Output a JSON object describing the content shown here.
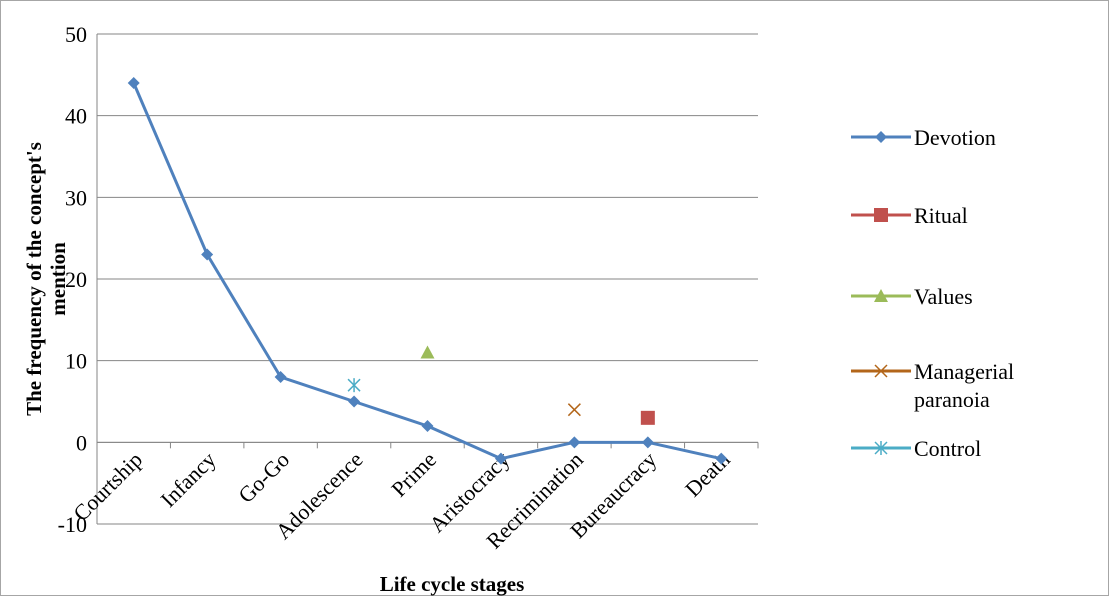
{
  "chart_data": {
    "type": "line",
    "categories": [
      "Courtship",
      "Infancy",
      "Go-Go",
      "Adolescence",
      "Prime",
      "Aristocracy",
      "Recrimination",
      "Bureaucracy",
      "Death"
    ],
    "series": [
      {
        "name": "Devotion",
        "color": "#4f81bd",
        "marker": "diamond",
        "values": [
          44,
          23,
          8,
          5,
          2,
          -2,
          0,
          0,
          -2
        ]
      },
      {
        "name": "Ritual",
        "color": "#c0504d",
        "marker": "square",
        "values": [
          null,
          null,
          null,
          null,
          null,
          null,
          null,
          3,
          null
        ]
      },
      {
        "name": "Values",
        "color": "#9bbb59",
        "marker": "triangle",
        "values": [
          null,
          null,
          null,
          null,
          11,
          null,
          null,
          null,
          null
        ]
      },
      {
        "name": "Managerial paranoia",
        "color": "#b3661a",
        "marker": "x",
        "values": [
          null,
          null,
          null,
          null,
          null,
          null,
          4,
          null,
          null
        ]
      },
      {
        "name": "Control",
        "color": "#4bacc6",
        "marker": "star",
        "values": [
          null,
          null,
          null,
          7,
          null,
          null,
          null,
          null,
          null
        ]
      }
    ],
    "legend": [
      "Devotion",
      "Ritual",
      "Values",
      "Managerial\nparanoia",
      "Control"
    ],
    "title": "",
    "xlabel": "Life cycle stages",
    "ylabel": "The frequency of the concept's mention",
    "ylim": [
      -10,
      50
    ],
    "yticks": [
      "50",
      "40",
      "30",
      "20",
      "10",
      "0",
      "-10"
    ],
    "ytick_values": [
      50,
      40,
      30,
      20,
      10,
      0,
      -10
    ],
    "grid": true,
    "legend_position": "right"
  }
}
